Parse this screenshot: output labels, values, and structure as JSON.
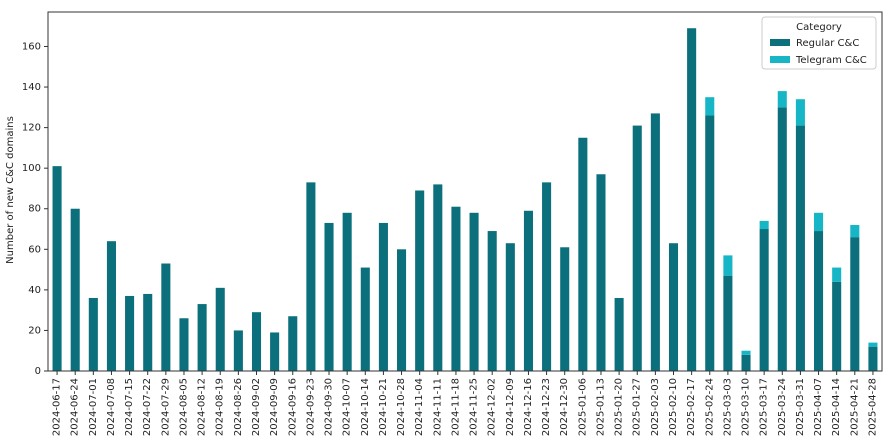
{
  "chart_data": {
    "type": "stacked_bar",
    "y_label": "Number of new C&C domains",
    "legend_title": "Category",
    "legend_position": "upper right",
    "categories": [
      "2024-06-17",
      "2024-06-24",
      "2024-07-01",
      "2024-07-08",
      "2024-07-15",
      "2024-07-22",
      "2024-07-29",
      "2024-08-05",
      "2024-08-12",
      "2024-08-19",
      "2024-08-26",
      "2024-09-02",
      "2024-09-09",
      "2024-09-16",
      "2024-09-23",
      "2024-09-30",
      "2024-10-07",
      "2024-10-14",
      "2024-10-21",
      "2024-10-28",
      "2024-11-04",
      "2024-11-11",
      "2024-11-18",
      "2024-11-25",
      "2024-12-02",
      "2024-12-09",
      "2024-12-16",
      "2024-12-23",
      "2024-12-30",
      "2025-01-06",
      "2025-01-13",
      "2025-01-20",
      "2025-01-27",
      "2025-02-03",
      "2025-02-10",
      "2025-02-17",
      "2025-02-24",
      "2025-03-03",
      "2025-03-10",
      "2025-03-17",
      "2025-03-24",
      "2025-03-31",
      "2025-04-07",
      "2025-04-14",
      "2025-04-21",
      "2025-04-28"
    ],
    "series": [
      {
        "name": "Regular C&C",
        "color": "#0b6f7c",
        "values": [
          101,
          80,
          36,
          64,
          37,
          38,
          53,
          26,
          33,
          41,
          20,
          29,
          19,
          27,
          93,
          73,
          78,
          51,
          73,
          60,
          89,
          92,
          81,
          78,
          69,
          63,
          79,
          93,
          61,
          115,
          97,
          36,
          121,
          127,
          63,
          169,
          126,
          47,
          8,
          70,
          130,
          121,
          69,
          44,
          66,
          12
        ]
      },
      {
        "name": "Telegram C&C",
        "color": "#17b6c6",
        "values": [
          0,
          0,
          0,
          0,
          0,
          0,
          0,
          0,
          0,
          0,
          0,
          0,
          0,
          0,
          0,
          0,
          0,
          0,
          0,
          0,
          0,
          0,
          0,
          0,
          0,
          0,
          0,
          0,
          0,
          0,
          0,
          0,
          0,
          0,
          0,
          0,
          9,
          10,
          2,
          4,
          8,
          13,
          9,
          7,
          6,
          2
        ]
      }
    ],
    "ylim": [
      0,
      177
    ],
    "yticks": [
      0,
      20,
      40,
      60,
      80,
      100,
      120,
      140,
      160
    ]
  }
}
